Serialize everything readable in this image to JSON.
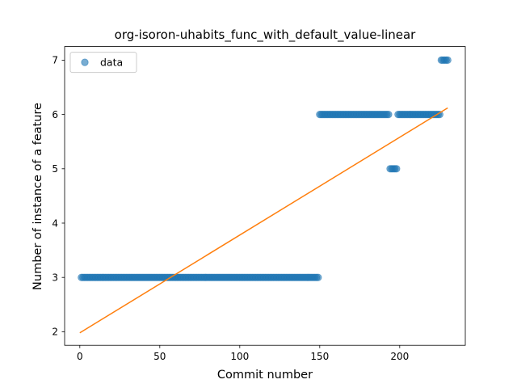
{
  "chart_data": {
    "type": "scatter",
    "title": "org-isoron-uhabits_func_with_default_value-linear",
    "xlabel": "Commit number",
    "ylabel": "Number of instance of a feature",
    "xlim": [
      -9.5,
      241
    ],
    "ylim": [
      1.75,
      7.25
    ],
    "xticks": [
      0,
      50,
      100,
      150,
      200
    ],
    "yticks": [
      2,
      3,
      4,
      5,
      6,
      7
    ],
    "legend": {
      "position": "top-left",
      "entries": [
        "data"
      ]
    },
    "colors": {
      "points": "#1f77b4",
      "fit": "#ff7f0e"
    },
    "series": [
      {
        "name": "data",
        "kind": "points",
        "segments": [
          {
            "x_start": 1,
            "x_end": 149,
            "y": 3
          },
          {
            "x_start": 150,
            "x_end": 193,
            "y": 6
          },
          {
            "x_start": 194,
            "x_end": 198,
            "y": 5
          },
          {
            "x_start": 199,
            "x_end": 225,
            "y": 6
          },
          {
            "x_start": 226,
            "x_end": 230,
            "y": 7
          }
        ]
      },
      {
        "name": "",
        "kind": "line",
        "points": [
          [
            0,
            1.98
          ],
          [
            230,
            6.12
          ]
        ]
      }
    ]
  }
}
